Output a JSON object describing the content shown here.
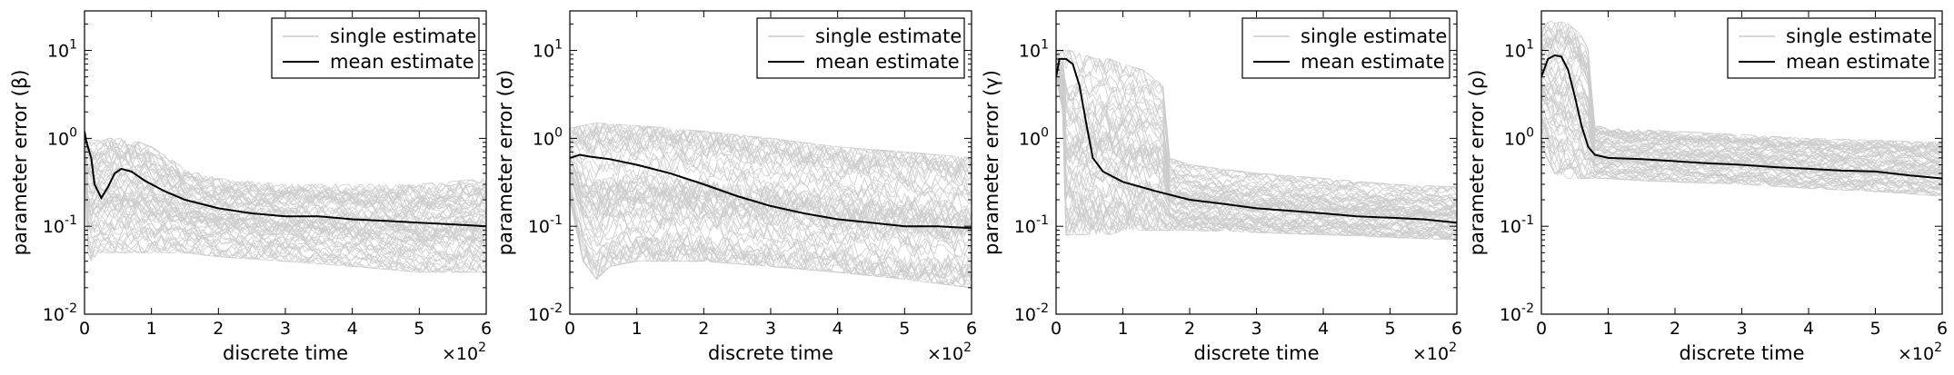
{
  "chart_data": [
    {
      "type": "line",
      "xlabel": "discrete time",
      "ylabel": "parameter error (β)",
      "x_multiplier": "×10",
      "x_multiplier_exp": "2",
      "xlim": [
        0,
        6
      ],
      "xticks": [
        "0",
        "1",
        "2",
        "3",
        "4",
        "5",
        "6"
      ],
      "ylim_log10": [
        -2,
        1.45
      ],
      "yticks": [
        {
          "base": "10",
          "exp": "-2",
          "log": -2
        },
        {
          "base": "10",
          "exp": "-1",
          "log": -1
        },
        {
          "base": "10",
          "exp": "0",
          "log": 0
        },
        {
          "base": "10",
          "exp": "1",
          "log": 1
        }
      ],
      "legend": {
        "position": "top-right",
        "entries": [
          "single estimate",
          "mean estimate"
        ]
      },
      "single_band": {
        "color": "#cccccc",
        "x": [
          0,
          0.05,
          0.1,
          0.2,
          0.3,
          0.5,
          0.75,
          1,
          1.5,
          2,
          3,
          4,
          5,
          6
        ],
        "low": [
          0.5,
          0.05,
          0.04,
          0.05,
          0.05,
          0.05,
          0.05,
          0.05,
          0.05,
          0.045,
          0.04,
          0.035,
          0.03,
          0.03
        ],
        "high": [
          1.0,
          1.0,
          0.95,
          0.95,
          1.0,
          1.0,
          0.95,
          0.8,
          0.45,
          0.35,
          0.3,
          0.3,
          0.3,
          0.35
        ]
      },
      "mean_series": {
        "name": "mean estimate",
        "color": "#000000",
        "x": [
          0,
          0.03,
          0.1,
          0.15,
          0.25,
          0.35,
          0.45,
          0.55,
          0.7,
          0.9,
          1.2,
          1.5,
          2,
          2.5,
          3,
          3.5,
          4,
          4.5,
          5,
          5.5,
          6
        ],
        "values": [
          1.2,
          0.9,
          0.6,
          0.3,
          0.21,
          0.28,
          0.4,
          0.45,
          0.42,
          0.33,
          0.25,
          0.2,
          0.16,
          0.14,
          0.13,
          0.13,
          0.12,
          0.115,
          0.11,
          0.105,
          0.1
        ]
      }
    },
    {
      "type": "line",
      "xlabel": "discrete time",
      "ylabel": "parameter error (σ)",
      "x_multiplier": "×10",
      "x_multiplier_exp": "2",
      "xlim": [
        0,
        6
      ],
      "xticks": [
        "0",
        "1",
        "2",
        "3",
        "4",
        "5",
        "6"
      ],
      "ylim_log10": [
        -2,
        1.45
      ],
      "yticks": [
        {
          "base": "10",
          "exp": "-2",
          "log": -2
        },
        {
          "base": "10",
          "exp": "-1",
          "log": -1
        },
        {
          "base": "10",
          "exp": "0",
          "log": 0
        },
        {
          "base": "10",
          "exp": "1",
          "log": 1
        }
      ],
      "legend": {
        "position": "top-right",
        "entries": [
          "single estimate",
          "mean estimate"
        ]
      },
      "single_band": {
        "color": "#cccccc",
        "x": [
          0,
          0.2,
          0.4,
          0.6,
          1,
          1.5,
          2,
          3,
          4,
          5,
          6
        ],
        "low": [
          0.2,
          0.04,
          0.025,
          0.035,
          0.04,
          0.04,
          0.04,
          0.035,
          0.03,
          0.025,
          0.02
        ],
        "high": [
          1.3,
          1.4,
          1.5,
          1.45,
          1.4,
          1.3,
          1.2,
          1.0,
          0.8,
          0.7,
          0.6
        ]
      },
      "mean_series": {
        "name": "mean estimate",
        "color": "#000000",
        "x": [
          0,
          0.15,
          0.3,
          0.6,
          1,
          1.5,
          2,
          2.5,
          3,
          3.5,
          4,
          4.5,
          5,
          5.5,
          6
        ],
        "values": [
          0.6,
          0.65,
          0.62,
          0.58,
          0.5,
          0.4,
          0.3,
          0.22,
          0.17,
          0.14,
          0.12,
          0.11,
          0.1,
          0.1,
          0.095
        ]
      }
    },
    {
      "type": "line",
      "xlabel": "discrete time",
      "ylabel": "parameter error (γ)",
      "x_multiplier": "×10",
      "x_multiplier_exp": "2",
      "xlim": [
        0,
        6
      ],
      "xticks": [
        "0",
        "1",
        "2",
        "3",
        "4",
        "5",
        "6"
      ],
      "ylim_log10": [
        -2,
        1.45
      ],
      "yticks": [
        {
          "base": "10",
          "exp": "-2",
          "log": -2
        },
        {
          "base": "10",
          "exp": "-1",
          "log": -1
        },
        {
          "base": "10",
          "exp": "0",
          "log": 0
        },
        {
          "base": "10",
          "exp": "1",
          "log": 1
        }
      ],
      "legend": {
        "position": "top-right",
        "entries": [
          "single estimate",
          "mean estimate"
        ]
      },
      "single_band": {
        "color": "#cccccc",
        "x": [
          0,
          0.1,
          0.15,
          0.2,
          0.4,
          0.6,
          0.8,
          1,
          1.3,
          1.6,
          1.7,
          2,
          3,
          4,
          5,
          6
        ],
        "low": [
          5,
          2,
          0.08,
          0.08,
          0.08,
          0.08,
          0.08,
          0.09,
          0.09,
          0.09,
          0.09,
          0.09,
          0.085,
          0.08,
          0.075,
          0.07
        ],
        "high": [
          10,
          10,
          10,
          10,
          9,
          8,
          8,
          7,
          6,
          4,
          0.6,
          0.5,
          0.4,
          0.35,
          0.3,
          0.28
        ]
      },
      "mean_series": {
        "name": "mean estimate",
        "color": "#000000",
        "x": [
          0,
          0.05,
          0.15,
          0.25,
          0.35,
          0.45,
          0.55,
          0.7,
          1,
          1.5,
          2,
          2.5,
          3,
          3.5,
          4,
          4.5,
          5,
          5.5,
          6
        ],
        "values": [
          5,
          8,
          8,
          7,
          4,
          1.5,
          0.6,
          0.42,
          0.32,
          0.25,
          0.2,
          0.18,
          0.16,
          0.15,
          0.14,
          0.13,
          0.125,
          0.12,
          0.11
        ]
      }
    },
    {
      "type": "line",
      "xlabel": "discrete time",
      "ylabel": "parameter error (ρ)",
      "x_multiplier": "×10",
      "x_multiplier_exp": "2",
      "xlim": [
        0,
        6
      ],
      "xticks": [
        "0",
        "1",
        "2",
        "3",
        "4",
        "5",
        "6"
      ],
      "ylim_log10": [
        -2,
        1.45
      ],
      "yticks": [
        {
          "base": "10",
          "exp": "-2",
          "log": -2
        },
        {
          "base": "10",
          "exp": "-1",
          "log": -1
        },
        {
          "base": "10",
          "exp": "0",
          "log": 0
        },
        {
          "base": "10",
          "exp": "1",
          "log": 1
        }
      ],
      "legend": {
        "position": "top-right",
        "entries": [
          "single estimate",
          "mean estimate"
        ]
      },
      "single_band": {
        "color": "#cccccc",
        "x": [
          0,
          0.2,
          0.4,
          0.6,
          0.7,
          0.8,
          1,
          1.5,
          2,
          3,
          4,
          5,
          6
        ],
        "low": [
          0.8,
          0.4,
          0.35,
          0.35,
          0.35,
          0.35,
          0.35,
          0.33,
          0.32,
          0.3,
          0.27,
          0.25,
          0.22
        ],
        "high": [
          20,
          22,
          20,
          15,
          10,
          1.4,
          1.3,
          1.25,
          1.2,
          1.1,
          1.0,
          0.95,
          0.9
        ]
      },
      "mean_series": {
        "name": "mean estimate",
        "color": "#000000",
        "x": [
          0,
          0.1,
          0.2,
          0.3,
          0.4,
          0.5,
          0.6,
          0.7,
          0.8,
          1,
          1.5,
          2,
          2.5,
          3,
          3.5,
          4,
          4.5,
          5,
          5.5,
          6
        ],
        "values": [
          5,
          8,
          8.8,
          8.5,
          6,
          3,
          1.4,
          0.8,
          0.65,
          0.6,
          0.58,
          0.55,
          0.52,
          0.5,
          0.47,
          0.45,
          0.43,
          0.42,
          0.38,
          0.35
        ]
      }
    }
  ]
}
